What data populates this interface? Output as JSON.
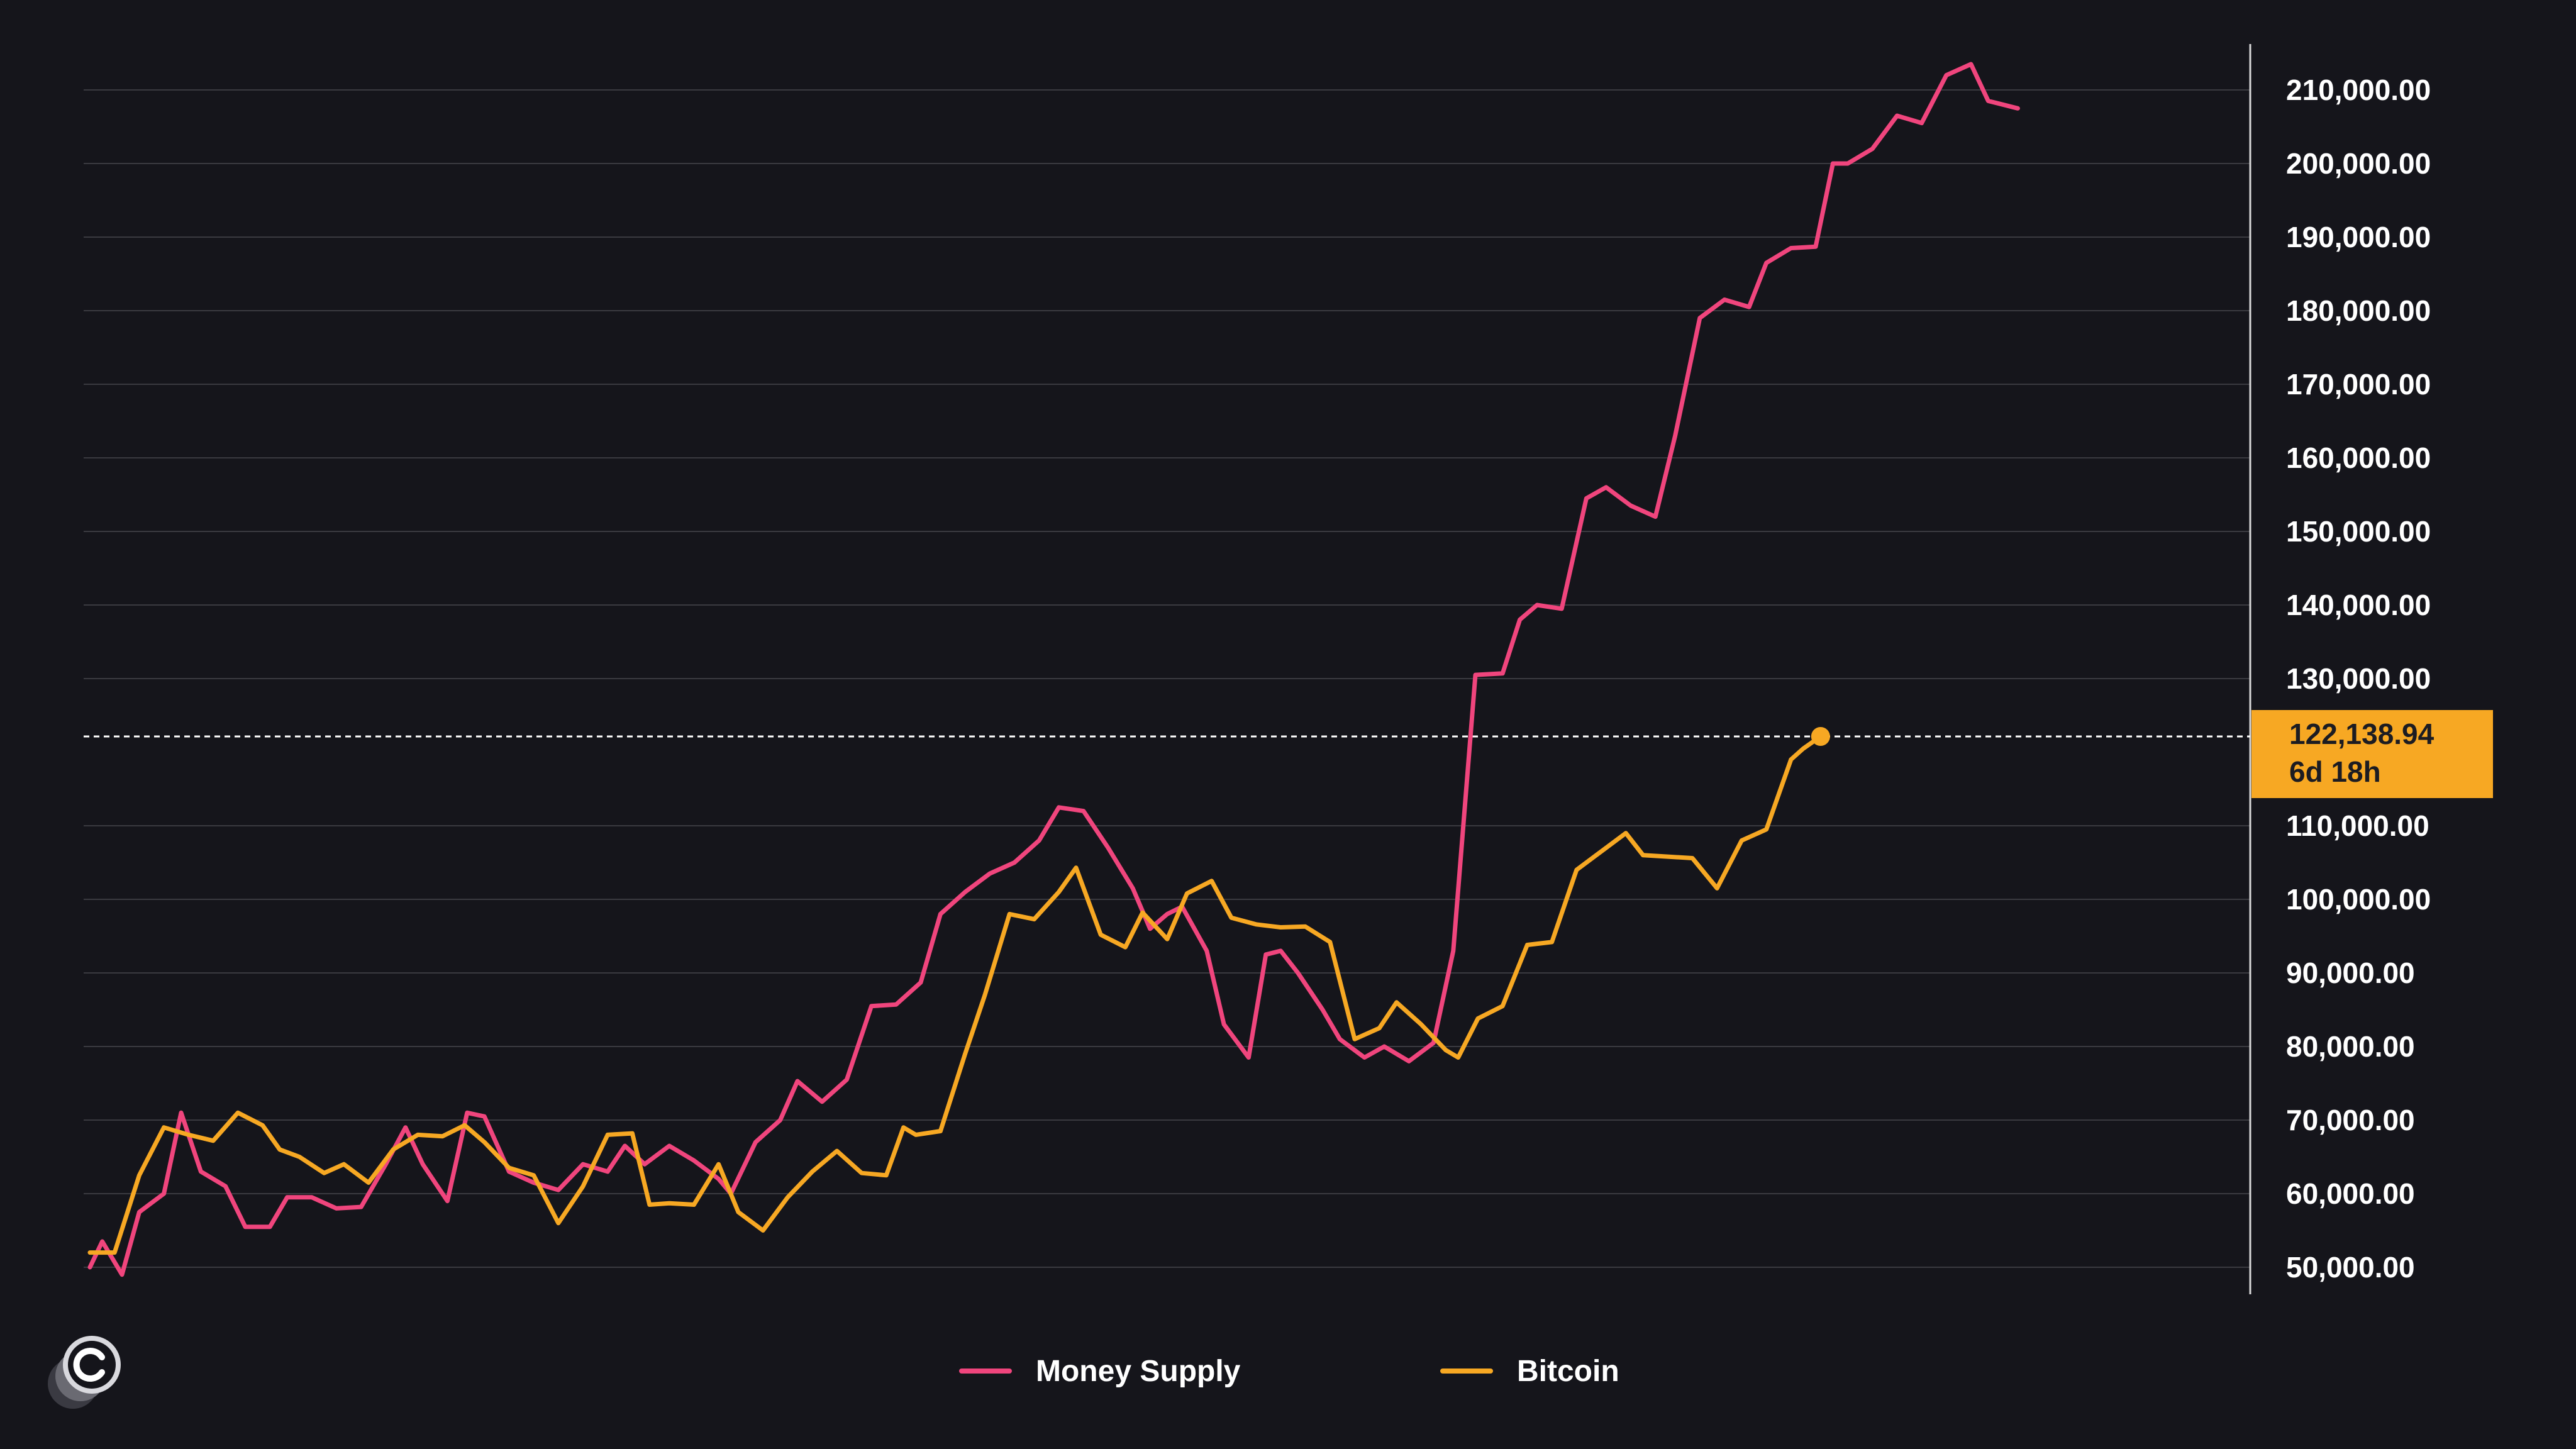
{
  "chart_data": {
    "type": "line",
    "title": "",
    "xlabel": "",
    "ylabel": "",
    "ylim": [
      50000,
      210000
    ],
    "y_axis_position": "right",
    "grid": true,
    "legend_position": "bottom-center",
    "y_tick_labels": [
      "210,000.00",
      "200,000.00",
      "190,000.00",
      "180,000.00",
      "170,000.00",
      "160,000.00",
      "150,000.00",
      "140,000.00",
      "130,000.00",
      "110,000.00",
      "100,000.00",
      "90,000.00",
      "80,000.00",
      "70,000.00",
      "60,000.00",
      "50,000.00"
    ],
    "y_tick_values": [
      210000,
      200000,
      190000,
      180000,
      170000,
      160000,
      150000,
      140000,
      130000,
      110000,
      100000,
      90000,
      80000,
      70000,
      60000,
      50000
    ],
    "series": [
      {
        "name": "Money Supply",
        "color": "#f0457d",
        "points": [
          [
            0.0,
            50000
          ],
          [
            0.5,
            53500
          ],
          [
            1.3,
            49000
          ],
          [
            2,
            57500
          ],
          [
            3,
            60000
          ],
          [
            3.7,
            71000
          ],
          [
            4.5,
            63000
          ],
          [
            5.5,
            61000
          ],
          [
            6.3,
            55500
          ],
          [
            7.3,
            55500
          ],
          [
            8,
            59500
          ],
          [
            9,
            59500
          ],
          [
            10,
            58000
          ],
          [
            11,
            58200
          ],
          [
            12,
            64000
          ],
          [
            12.8,
            69000
          ],
          [
            13.5,
            64000
          ],
          [
            14.5,
            59000
          ],
          [
            15.3,
            71000
          ],
          [
            16,
            70500
          ],
          [
            17,
            63000
          ],
          [
            18,
            61500
          ],
          [
            19,
            60500
          ],
          [
            20,
            64000
          ],
          [
            21,
            63000
          ],
          [
            21.7,
            66500
          ],
          [
            22.5,
            64000
          ],
          [
            23.5,
            66500
          ],
          [
            24.5,
            64500
          ],
          [
            25.5,
            62000
          ],
          [
            26,
            60000
          ],
          [
            27,
            67000
          ],
          [
            28,
            70000
          ],
          [
            28.7,
            75300
          ],
          [
            29.7,
            72500
          ],
          [
            30.7,
            75500
          ],
          [
            31.7,
            85500
          ],
          [
            32.7,
            85700
          ],
          [
            33.7,
            88700
          ],
          [
            34.5,
            98000
          ],
          [
            35.5,
            101000
          ],
          [
            36.5,
            103500
          ],
          [
            37.5,
            105000
          ],
          [
            38.5,
            108000
          ],
          [
            39.3,
            112500
          ],
          [
            40.3,
            112000
          ],
          [
            41.3,
            107000
          ],
          [
            42.3,
            101500
          ],
          [
            43,
            96000
          ],
          [
            43.7,
            98000
          ],
          [
            44.3,
            99000
          ],
          [
            45.3,
            93000
          ],
          [
            46,
            83000
          ],
          [
            47,
            78500
          ],
          [
            47.7,
            92500
          ],
          [
            48.3,
            93000
          ],
          [
            49,
            90000
          ],
          [
            50,
            85000
          ],
          [
            50.7,
            81000
          ],
          [
            51.7,
            78500
          ],
          [
            52.5,
            80000
          ],
          [
            53.5,
            78000
          ],
          [
            54.5,
            80500
          ],
          [
            55.3,
            93000
          ],
          [
            56.2,
            130500
          ],
          [
            57.3,
            130700
          ],
          [
            58,
            138000
          ],
          [
            58.7,
            140000
          ],
          [
            59.7,
            139500
          ],
          [
            60.7,
            154500
          ],
          [
            61.5,
            156000
          ],
          [
            62.5,
            153500
          ],
          [
            63.5,
            152000
          ],
          [
            64.3,
            163000
          ],
          [
            65.3,
            179000
          ],
          [
            66.3,
            181500
          ],
          [
            67.3,
            180500
          ],
          [
            68,
            186500
          ],
          [
            69,
            188500
          ],
          [
            70,
            188700
          ],
          [
            70.7,
            200000
          ],
          [
            71.3,
            200000
          ],
          [
            72.3,
            202000
          ],
          [
            73.3,
            206500
          ],
          [
            74.3,
            205500
          ],
          [
            75.3,
            212000
          ],
          [
            76.3,
            213500
          ],
          [
            77,
            208500
          ],
          [
            78.2,
            207500
          ]
        ]
      },
      {
        "name": "Bitcoin",
        "color": "#f7a823",
        "points": [
          [
            0.0,
            52000
          ],
          [
            1.0,
            52000
          ],
          [
            2,
            62500
          ],
          [
            3,
            69000
          ],
          [
            4,
            68000
          ],
          [
            5,
            67200
          ],
          [
            6,
            71000
          ],
          [
            7,
            69300
          ],
          [
            7.7,
            66000
          ],
          [
            8.5,
            65000
          ],
          [
            9.5,
            62800
          ],
          [
            10.3,
            64000
          ],
          [
            11.3,
            61500
          ],
          [
            12.3,
            66000
          ],
          [
            13.3,
            68000
          ],
          [
            14.3,
            67800
          ],
          [
            15.2,
            69300
          ],
          [
            16,
            67000
          ],
          [
            17,
            63500
          ],
          [
            18,
            62500
          ],
          [
            19,
            56000
          ],
          [
            20,
            61000
          ],
          [
            21,
            68000
          ],
          [
            22,
            68200
          ],
          [
            22.7,
            58500
          ],
          [
            23.5,
            58700
          ],
          [
            24.5,
            58500
          ],
          [
            25.5,
            64000
          ],
          [
            26.3,
            57500
          ],
          [
            27.3,
            55000
          ],
          [
            28.3,
            59500
          ],
          [
            29.3,
            63000
          ],
          [
            30.3,
            65800
          ],
          [
            31.3,
            62800
          ],
          [
            32.3,
            62500
          ],
          [
            33,
            69000
          ],
          [
            33.5,
            68000
          ],
          [
            34.5,
            68500
          ],
          [
            35.5,
            79000
          ],
          [
            36.3,
            87000
          ],
          [
            37.3,
            98000
          ],
          [
            38.3,
            97300
          ],
          [
            39.3,
            101000
          ],
          [
            40,
            104300
          ],
          [
            41,
            95200
          ],
          [
            42,
            93500
          ],
          [
            42.7,
            98200
          ],
          [
            43.7,
            94600
          ],
          [
            44.5,
            100800
          ],
          [
            45.5,
            102500
          ],
          [
            46.3,
            97500
          ],
          [
            47.3,
            96600
          ],
          [
            48.3,
            96200
          ],
          [
            49.3,
            96300
          ],
          [
            50.3,
            94200
          ],
          [
            51.3,
            81000
          ],
          [
            52.3,
            82500
          ],
          [
            53,
            86000
          ],
          [
            54,
            83000
          ],
          [
            55,
            79500
          ],
          [
            55.5,
            78500
          ],
          [
            56.3,
            83800
          ],
          [
            57.3,
            85500
          ],
          [
            58.3,
            93800
          ],
          [
            59.3,
            94200
          ],
          [
            60.3,
            104000
          ],
          [
            61.3,
            106500
          ],
          [
            62.3,
            109000
          ],
          [
            63,
            106000
          ],
          [
            64,
            105800
          ],
          [
            65,
            105600
          ],
          [
            66,
            101500
          ],
          [
            67,
            108000
          ],
          [
            68,
            109500
          ],
          [
            69,
            119000
          ],
          [
            69.5,
            120500
          ],
          [
            70.2,
            122138.94
          ]
        ]
      }
    ],
    "current_value_marker": {
      "series": "Bitcoin",
      "value": 122138.94,
      "value_label": "122,138.94",
      "countdown_label": "6d  18h",
      "marker_color": "#f7a823"
    }
  },
  "legend": {
    "items": [
      {
        "label": "Money Supply",
        "color": "#f0457d"
      },
      {
        "label": "Bitcoin",
        "color": "#f7a823"
      }
    ]
  },
  "colors": {
    "background": "#15151b",
    "grid": "#3a3a40",
    "axis": "#d8d8d8",
    "text": "#ffffff"
  },
  "logo": {
    "icon": "c-circle-logo-icon"
  }
}
